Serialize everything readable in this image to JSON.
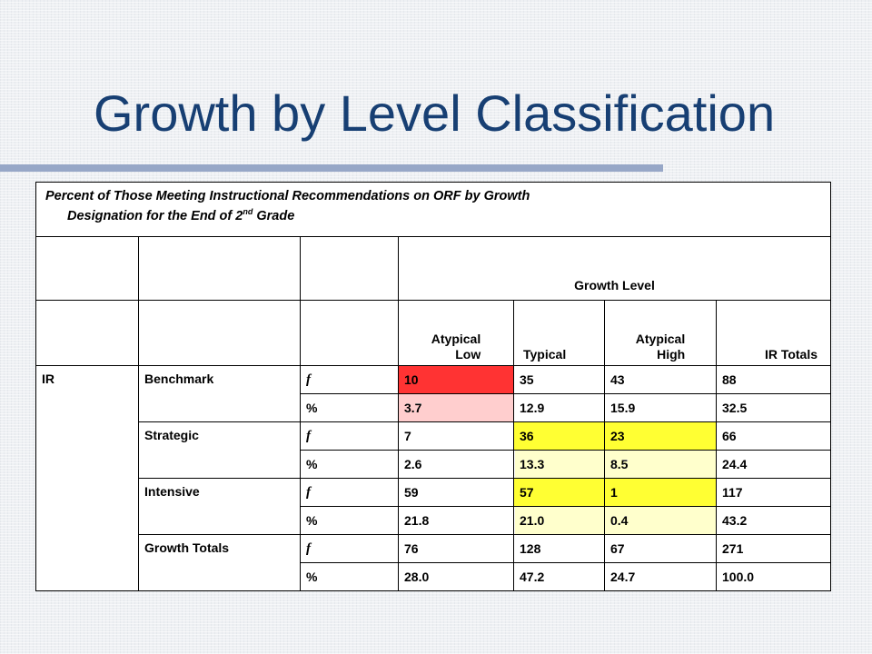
{
  "slide": {
    "title": "Growth by Level Classification"
  },
  "table": {
    "caption_line1": "Percent of Those Meeting Instructional Recommendations on ORF by Growth",
    "caption_line2_pre": "Designation for the End of 2",
    "caption_sup": "nd",
    "caption_line2_post": " Grade",
    "growth_level": "Growth Level",
    "headers": {
      "atypical_low_1": "Atypical",
      "atypical_low_2": "Low",
      "typical": "Typical",
      "atypical_high_1": "Atypical",
      "atypical_high_2": "High",
      "ir_totals": "IR Totals"
    },
    "ir_label": "IR",
    "sym_f": "f",
    "sym_pct": "%",
    "groups": [
      {
        "label": "Benchmark",
        "f": [
          "10",
          "35",
          "43",
          "88"
        ],
        "pct": [
          "3.7",
          "12.9",
          "15.9",
          "32.5"
        ]
      },
      {
        "label": "Strategic",
        "f": [
          "7",
          "36",
          "23",
          "66"
        ],
        "pct": [
          "2.6",
          "13.3",
          "8.5",
          "24.4"
        ]
      },
      {
        "label": "Intensive",
        "f": [
          "59",
          "57",
          "1",
          "117"
        ],
        "pct": [
          "21.8",
          "21.0",
          "0.4",
          "43.2"
        ]
      },
      {
        "label": "Growth Totals",
        "f": [
          "76",
          "128",
          "67",
          "271"
        ],
        "pct": [
          "28.0",
          "47.2",
          "24.7",
          "100.0"
        ]
      }
    ]
  },
  "colors": {
    "title": "#173f73",
    "rule": "#97a7c7",
    "highlight_red": "#ff3333",
    "highlight_yellow": "#ffff33"
  }
}
